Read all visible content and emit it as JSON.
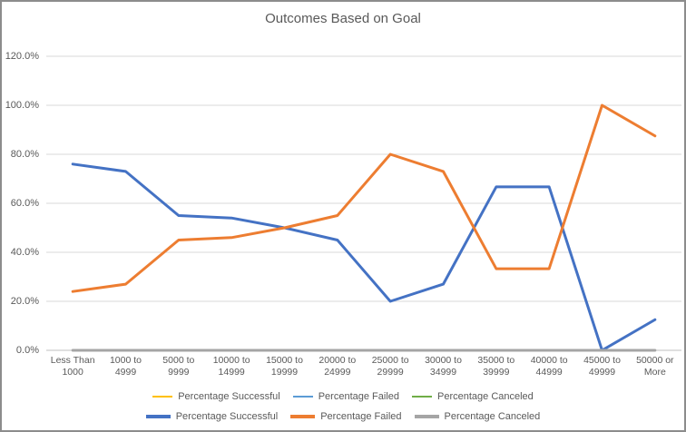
{
  "chart_data": {
    "type": "line",
    "title": "Outcomes Based on Goal",
    "categories": [
      "Less Than 1000",
      "1000 to 4999",
      "5000 to 9999",
      "10000 to 14999",
      "15000 to 19999",
      "20000 to 24999",
      "25000 to 29999",
      "30000 to 34999",
      "35000 to 39999",
      "40000 to 44999",
      "45000 to 49999",
      "50000 or More"
    ],
    "y_tick_labels": [
      "0.0%",
      "20.0%",
      "40.0%",
      "60.0%",
      "80.0%",
      "100.0%",
      "120.0%"
    ],
    "ylim": [
      0,
      120
    ],
    "grid": true,
    "legend_position": "bottom",
    "series": [
      {
        "name": "Percentage Successful",
        "color": "#4472C4",
        "values": [
          76,
          73,
          55,
          54,
          50,
          45,
          20,
          27,
          66.7,
          66.7,
          0,
          12.5
        ]
      },
      {
        "name": "Percentage Failed",
        "color": "#ED7D31",
        "values": [
          24,
          27,
          45,
          46,
          50,
          55,
          80,
          73,
          33.3,
          33.3,
          100,
          87.5
        ]
      },
      {
        "name": "Percentage Canceled",
        "color": "#A5A5A5",
        "values": [
          0,
          0,
          0,
          0,
          0,
          0,
          0,
          0,
          0,
          0,
          0,
          0
        ]
      }
    ],
    "legend_rows": [
      [
        {
          "label": "Percentage Successful",
          "color": "#FFC000",
          "thick": false
        },
        {
          "label": "Percentage Failed",
          "color": "#5B9BD5",
          "thick": false
        },
        {
          "label": "Percentage Canceled",
          "color": "#70AD47",
          "thick": false
        }
      ],
      [
        {
          "label": "Percentage Successful",
          "color": "#4472C4",
          "thick": true
        },
        {
          "label": "Percentage Failed",
          "color": "#ED7D31",
          "thick": true
        },
        {
          "label": "Percentage Canceled",
          "color": "#A5A5A5",
          "thick": true
        }
      ]
    ],
    "style_colors": {
      "gridline": "#D9D9D9",
      "axis_line": "#BFBFBF",
      "text": "#595959",
      "chart_border": "#8C8C8C"
    }
  }
}
